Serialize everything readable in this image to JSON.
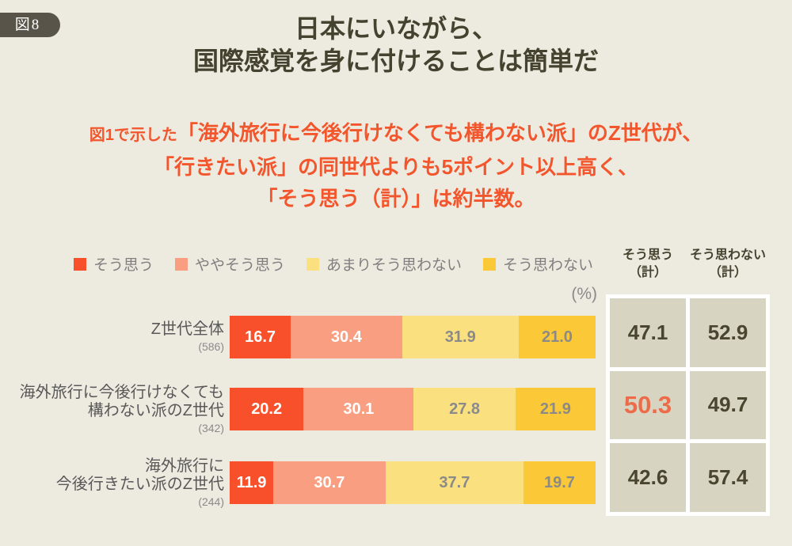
{
  "figure_badge": "図8",
  "title": {
    "line1": "日本にいながら、",
    "line2": "国際感覚を身に付けることは簡単だ"
  },
  "subtitle": {
    "line1_prefix": "図1で示した",
    "line1_main": "「海外旅行に今後行けなくても構わない派」のZ世代が、",
    "line2": "「行きたい派」の同世代よりも5ポイント以上高く、",
    "line3": "「そう思う（計）」は約半数。"
  },
  "unit_label": "(%)",
  "colors": {
    "background": "#EDEAE0",
    "badge": "#59544A",
    "title_text": "#45422F",
    "subtitle_text": "#F3562C",
    "segment_colors": [
      "#F8502B",
      "#F99E80",
      "#FAE07E",
      "#FBC937"
    ],
    "segment_value_colors": [
      "#FFFFFF",
      "#FFFFFF",
      "#8A8A8A",
      "#8A8A8A"
    ],
    "table_cell_bg": "#D8D4C2",
    "table_value": "#49452F",
    "table_highlight_value": "#EC6B49",
    "legend_text": "#7F7F7F"
  },
  "summary_columns": [
    {
      "line1": "そう思う",
      "line2": "（計）"
    },
    {
      "line1": "そう思わない",
      "line2": "（計）"
    }
  ],
  "chart_data": {
    "type": "bar",
    "stacked": true,
    "orientation": "horizontal",
    "unit": "%",
    "xlim": [
      0,
      100
    ],
    "title": "日本にいながら、国際感覚を身に付けることは簡単だ",
    "legend_position": "top",
    "series_labels": [
      "そう思う",
      "ややそう思う",
      "あまりそう思わない",
      "そう思わない"
    ],
    "rows": [
      {
        "label_lines": [
          "Z世代全体"
        ],
        "n_label": "(586)",
        "values": [
          16.7,
          30.4,
          31.9,
          21.0
        ],
        "agree_total": "47.1",
        "disagree_total": "52.9",
        "highlight_agree": false
      },
      {
        "label_lines": [
          "海外旅行に今後行けなくても",
          "構わない派のZ世代"
        ],
        "n_label": "(342)",
        "values": [
          20.2,
          30.1,
          27.8,
          21.9
        ],
        "agree_total": "50.3",
        "disagree_total": "49.7",
        "highlight_agree": true
      },
      {
        "label_lines": [
          "海外旅行に",
          "今後行きたい派のZ世代"
        ],
        "n_label": "(244)",
        "values": [
          11.9,
          30.7,
          37.7,
          19.7
        ],
        "agree_total": "42.6",
        "disagree_total": "57.4",
        "highlight_agree": false
      }
    ]
  }
}
